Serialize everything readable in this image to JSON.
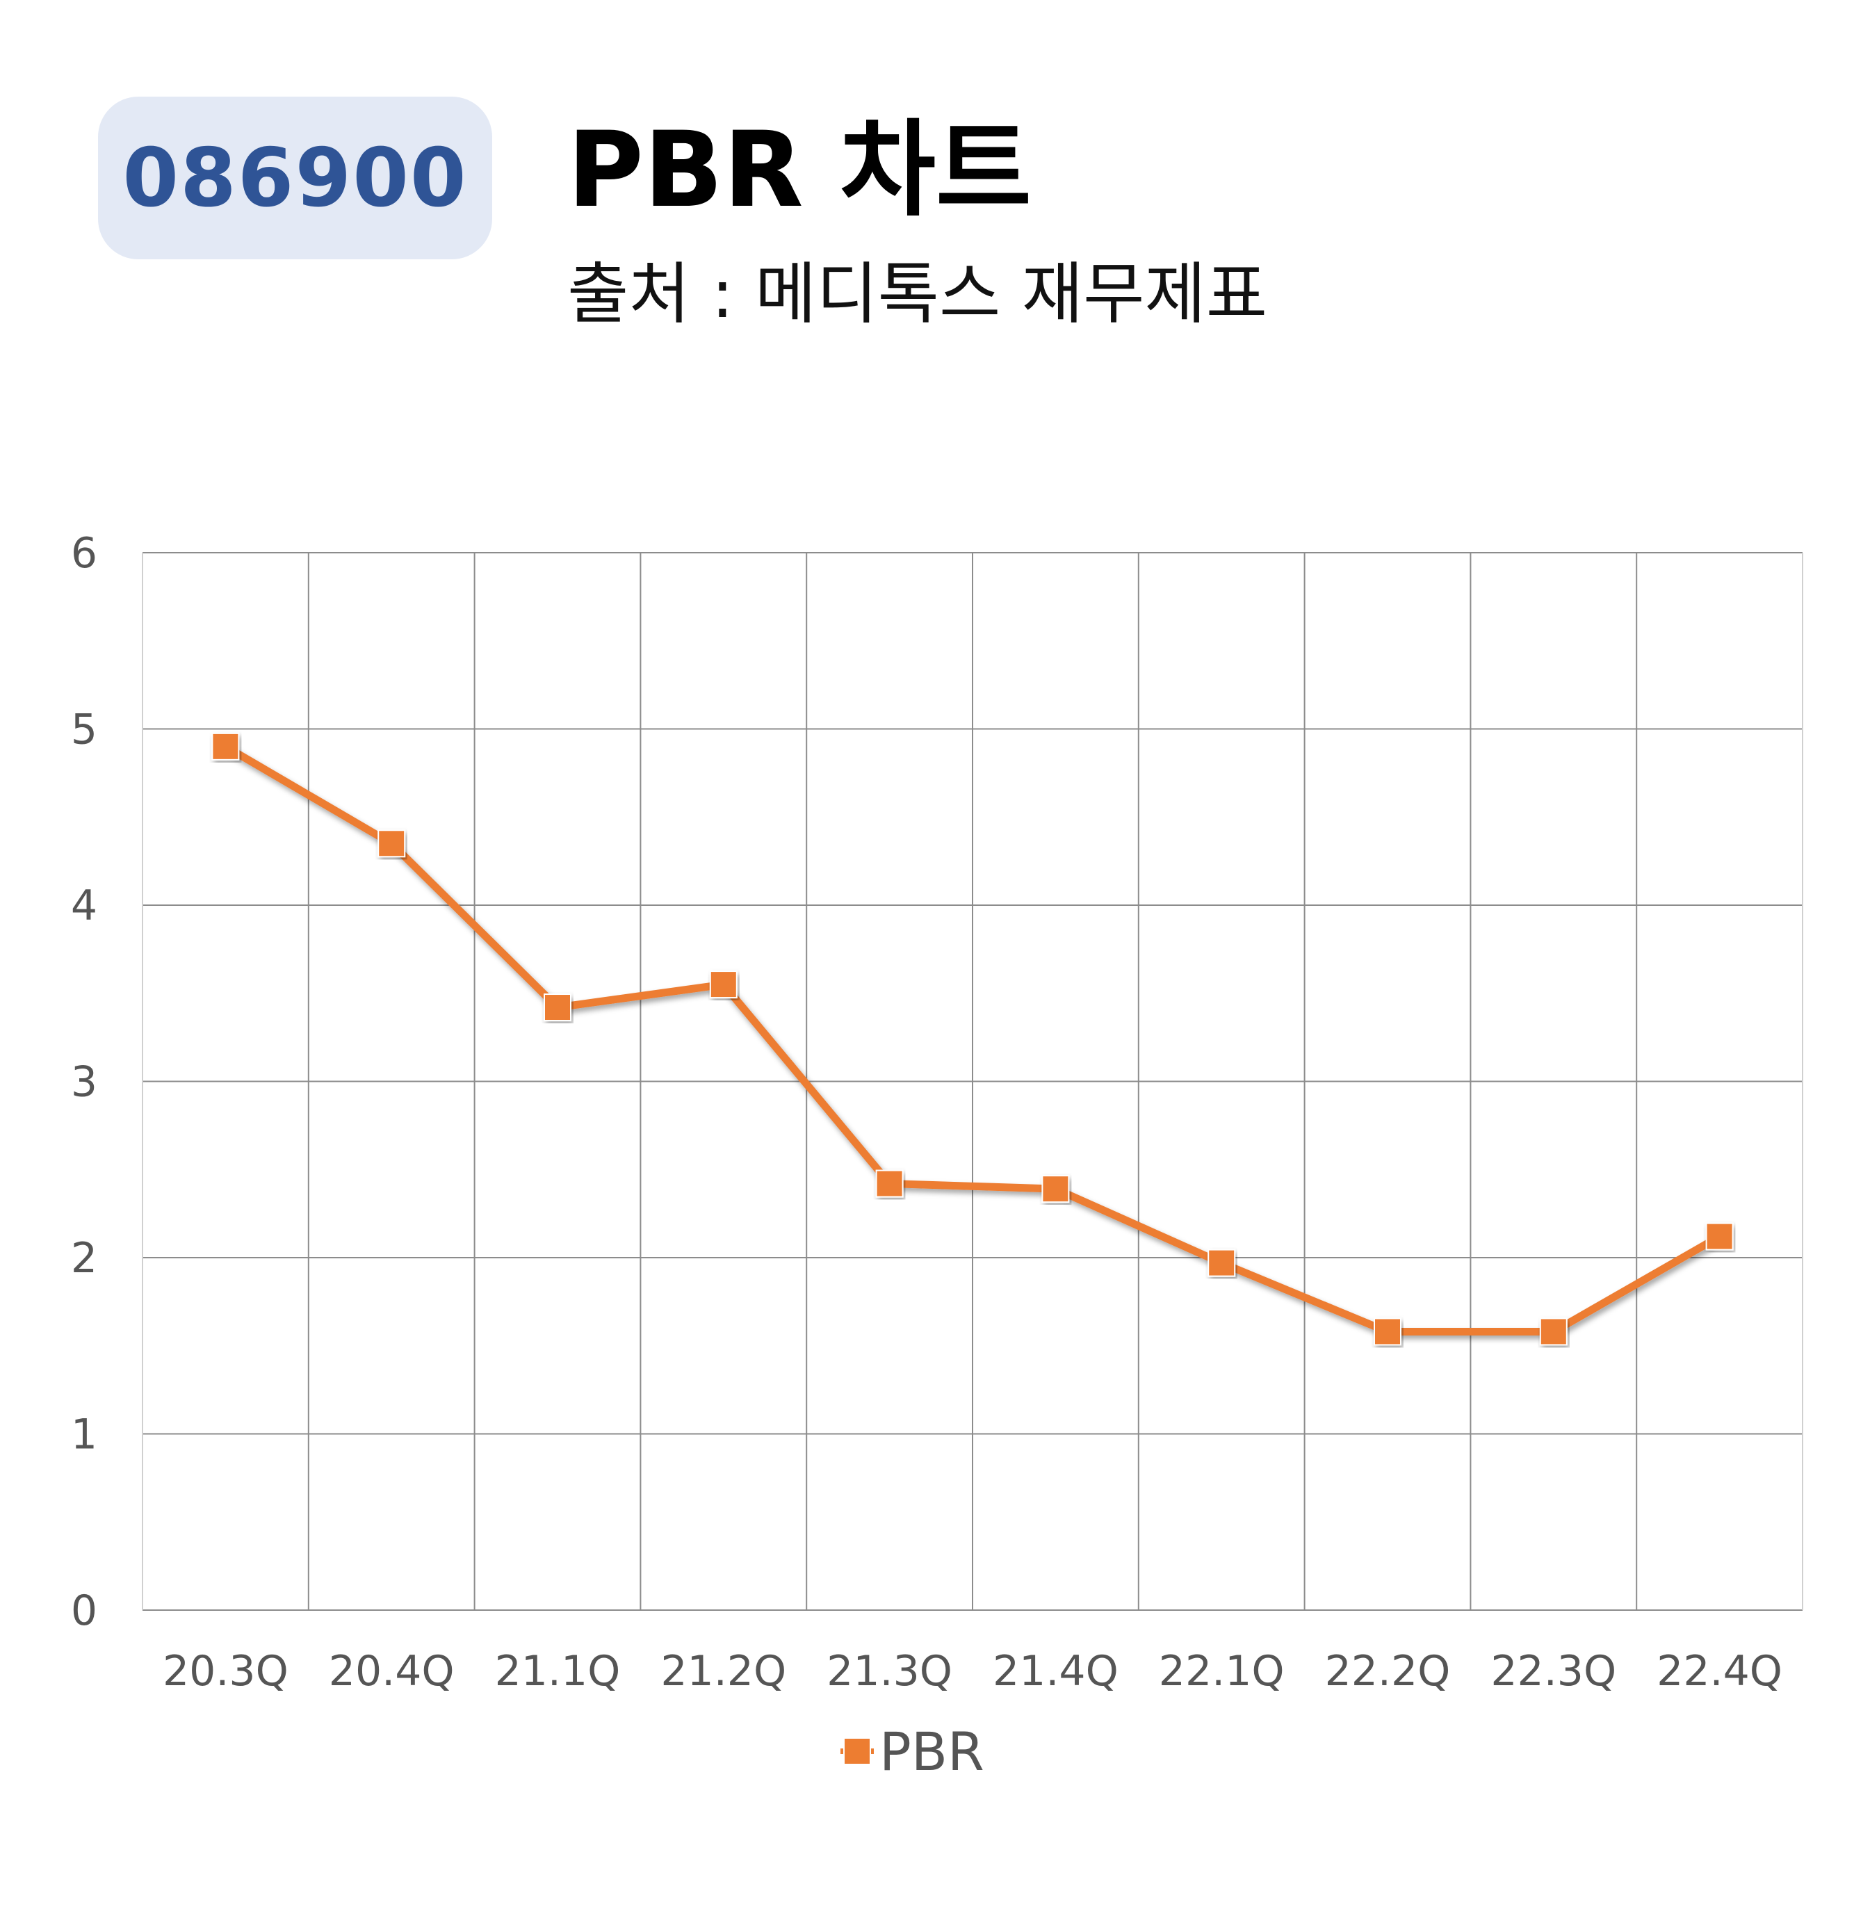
{
  "header": {
    "ticker": "086900",
    "title": "PBR 차트",
    "subtitle": "출처 : 메디톡스 재무제표"
  },
  "chart_data": {
    "type": "line",
    "categories": [
      "20.3Q",
      "20.4Q",
      "21.1Q",
      "21.2Q",
      "21.3Q",
      "21.4Q",
      "22.1Q",
      "22.2Q",
      "22.3Q",
      "22.4Q"
    ],
    "series": [
      {
        "name": "PBR",
        "values": [
          4.9,
          4.35,
          3.42,
          3.55,
          2.42,
          2.39,
          1.97,
          1.58,
          1.58,
          2.12
        ],
        "color": "#ed7d31",
        "marker": "square"
      }
    ],
    "ylim": [
      0,
      6
    ],
    "yticks": [
      0,
      1,
      2,
      3,
      4,
      5,
      6
    ],
    "grid": true,
    "legend_position": "bottom"
  }
}
